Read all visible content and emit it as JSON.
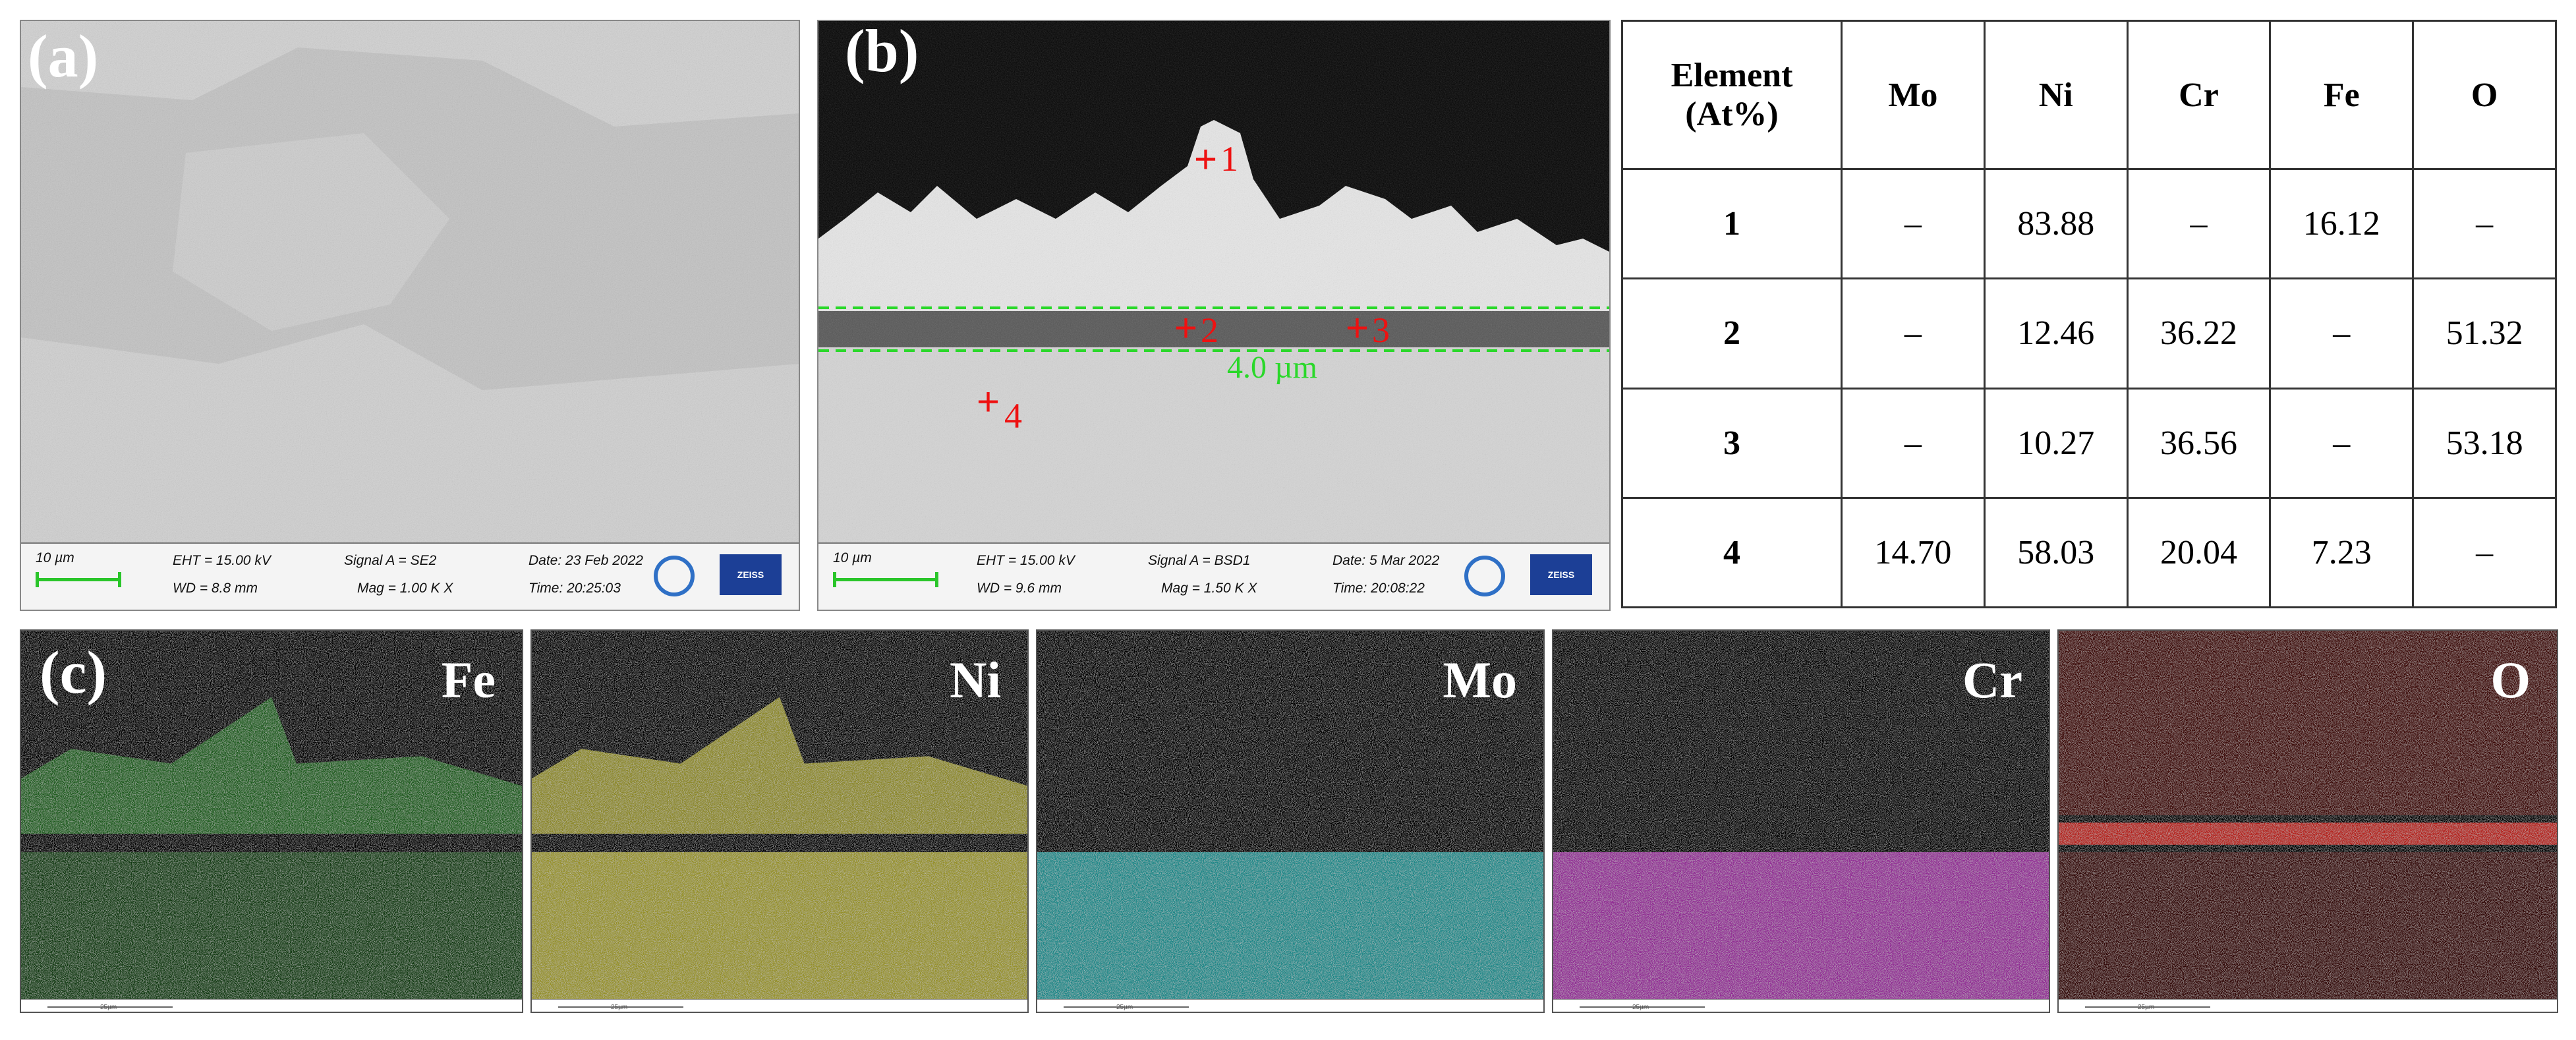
{
  "panel_a": {
    "label": "(a)",
    "sem_info": {
      "scale": "10 µm",
      "eht": "EHT = 15.00 kV",
      "wd": "WD = 8.8 mm",
      "signal": "Signal A = SE2",
      "mag": "Mag = 1.00 K X",
      "date": "Date: 23 Feb 2022",
      "time": "Time: 20:25:03",
      "brand": "ZEISS"
    }
  },
  "panel_b": {
    "label": "(b)",
    "thickness_label": "4.0 µm",
    "points": [
      "1",
      "2",
      "3",
      "4"
    ],
    "sem_info": {
      "scale": "10 µm",
      "eht": "EHT = 15.00 kV",
      "wd": "WD = 9.6 mm",
      "signal": "Signal A = BSD1",
      "mag": "Mag = 1.50 K X",
      "date": "Date: 5 Mar 2022",
      "time": "Time: 20:08:22",
      "brand": "ZEISS"
    }
  },
  "table": {
    "header": [
      "Element (At%)",
      "Mo",
      "Ni",
      "Cr",
      "Fe",
      "O"
    ],
    "rows": [
      [
        "1",
        "–",
        "83.88",
        "–",
        "16.12",
        "–"
      ],
      [
        "2",
        "–",
        "12.46",
        "36.22",
        "–",
        "51.32"
      ],
      [
        "3",
        "–",
        "10.27",
        "36.56",
        "–",
        "53.18"
      ],
      [
        "4",
        "14.70",
        "58.03",
        "20.04",
        "7.23",
        "–"
      ]
    ]
  },
  "panel_c": {
    "label": "(c)",
    "maps": [
      {
        "element": "Fe",
        "color": "#3aa83a"
      },
      {
        "element": "Ni",
        "color": "#c8c23a"
      },
      {
        "element": "Mo",
        "color": "#2ab6b6"
      },
      {
        "element": "Cr",
        "color": "#c13cc6"
      },
      {
        "element": "O",
        "color": "#c8251f"
      }
    ],
    "map_scale": "25µm"
  }
}
